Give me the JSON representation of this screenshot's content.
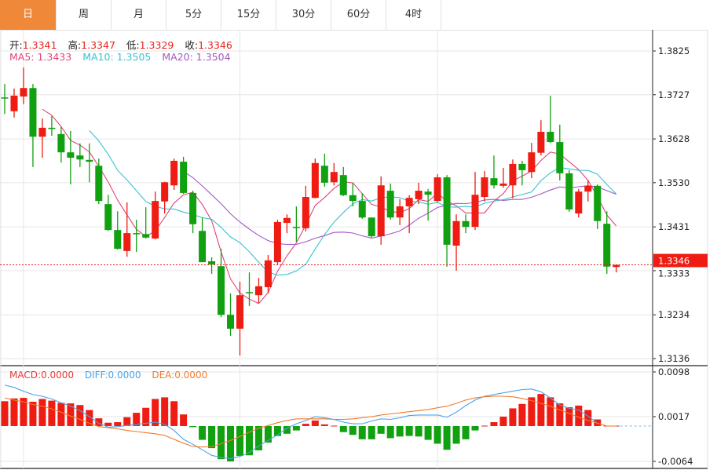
{
  "tabs": [
    {
      "label": "日",
      "active": true
    },
    {
      "label": "周"
    },
    {
      "label": "月"
    },
    {
      "label": "5分"
    },
    {
      "label": "15分"
    },
    {
      "label": "30分"
    },
    {
      "label": "60分"
    },
    {
      "label": "4时"
    }
  ],
  "ohlc_legend": {
    "open_label": "开:",
    "open": "1.3341",
    "high_label": "高:",
    "high": "1.3347",
    "low_label": "低:",
    "low": "1.3329",
    "close_label": "收:",
    "close": "1.3346"
  },
  "ma_legend": {
    "ma5": "MA5: 1.3433",
    "ma10": "MA10: 1.3505",
    "ma20": "MA20: 1.3504"
  },
  "macd_legend": {
    "macd": "MACD:0.0000",
    "diff": "DIFF:0.0000",
    "dea": "DEA:0.0000"
  },
  "colors": {
    "up": "#ee1c12",
    "down": "#10a010",
    "active_tab": "#f0883a",
    "ma5": "#e0457b",
    "ma10": "#37c3d0",
    "ma20": "#a456c4",
    "macd": "#e53935",
    "diff": "#4aa3e8",
    "dea": "#f07a2a"
  },
  "chart_data": [
    {
      "type": "candlestick",
      "title": "",
      "yaxis_ticks": [
        "1.3825",
        "1.3727",
        "1.3628",
        "1.3530",
        "1.3431",
        "1.3333",
        "1.3234",
        "1.3136"
      ],
      "ylim": [
        1.3136,
        1.3825
      ],
      "grid": true,
      "current_price": "1.3346",
      "ma_periods": [
        5,
        10,
        20
      ],
      "ohlc": [
        [
          1.3721,
          1.3751,
          1.3684,
          1.372
        ],
        [
          1.369,
          1.3741,
          1.3676,
          1.3725
        ],
        [
          1.3723,
          1.3788,
          1.3706,
          1.3742
        ],
        [
          1.3742,
          1.3751,
          1.3565,
          1.3633
        ],
        [
          1.3633,
          1.3674,
          1.3586,
          1.3653
        ],
        [
          1.3653,
          1.3679,
          1.3635,
          1.3652
        ],
        [
          1.3639,
          1.3655,
          1.3575,
          1.3598
        ],
        [
          1.3598,
          1.3646,
          1.3526,
          1.3586
        ],
        [
          1.3591,
          1.3618,
          1.3565,
          1.3582
        ],
        [
          1.3581,
          1.3618,
          1.3531,
          1.3577
        ],
        [
          1.3568,
          1.3584,
          1.3482,
          1.3489
        ],
        [
          1.3482,
          1.3503,
          1.3422,
          1.3424
        ],
        [
          1.3424,
          1.3466,
          1.338,
          1.3382
        ],
        [
          1.3377,
          1.3486,
          1.3364,
          1.3417
        ],
        [
          1.3417,
          1.3447,
          1.3375,
          1.3416
        ],
        [
          1.3415,
          1.3475,
          1.3405,
          1.3407
        ],
        [
          1.3405,
          1.351,
          1.3403,
          1.3489
        ],
        [
          1.3488,
          1.3532,
          1.3461,
          1.3531
        ],
        [
          1.3524,
          1.3584,
          1.3514,
          1.3579
        ],
        [
          1.3577,
          1.3588,
          1.3505,
          1.3507
        ],
        [
          1.3507,
          1.3512,
          1.3417,
          1.3437
        ],
        [
          1.3422,
          1.3452,
          1.3352,
          1.3352
        ],
        [
          1.3354,
          1.3363,
          1.3326,
          1.3347
        ],
        [
          1.3343,
          1.3382,
          1.3229,
          1.3234
        ],
        [
          1.3234,
          1.3282,
          1.3187,
          1.3203
        ],
        [
          1.3203,
          1.3308,
          1.3143,
          1.3278
        ],
        [
          1.3285,
          1.3329,
          1.3254,
          1.3284
        ],
        [
          1.3278,
          1.3317,
          1.3261,
          1.3298
        ],
        [
          1.3296,
          1.3368,
          1.3282,
          1.3356
        ],
        [
          1.3352,
          1.3447,
          1.3347,
          1.3442
        ],
        [
          1.344,
          1.3459,
          1.3417,
          1.3451
        ],
        [
          1.3431,
          1.3477,
          1.3398,
          1.343
        ],
        [
          1.3428,
          1.3523,
          1.3421,
          1.3498
        ],
        [
          1.3496,
          1.3584,
          1.3495,
          1.3574
        ],
        [
          1.3568,
          1.3595,
          1.3521,
          1.353
        ],
        [
          1.3531,
          1.3574,
          1.3524,
          1.3554
        ],
        [
          1.3547,
          1.3565,
          1.35,
          1.3502
        ],
        [
          1.3502,
          1.353,
          1.3477,
          1.3489
        ],
        [
          1.3489,
          1.3507,
          1.3449,
          1.3452
        ],
        [
          1.3452,
          1.3452,
          1.3407,
          1.341
        ],
        [
          1.341,
          1.3544,
          1.3391,
          1.3524
        ],
        [
          1.3512,
          1.3528,
          1.3447,
          1.3452
        ],
        [
          1.3452,
          1.3493,
          1.3435,
          1.3477
        ],
        [
          1.3477,
          1.3502,
          1.3417,
          1.3496
        ],
        [
          1.3493,
          1.353,
          1.3482,
          1.3512
        ],
        [
          1.351,
          1.3516,
          1.3445,
          1.3503
        ],
        [
          1.3489,
          1.3549,
          1.3486,
          1.3542
        ],
        [
          1.3542,
          1.3547,
          1.3342,
          1.3391
        ],
        [
          1.3389,
          1.3459,
          1.3333,
          1.3444
        ],
        [
          1.3444,
          1.3459,
          1.3417,
          1.3431
        ],
        [
          1.3431,
          1.3554,
          1.3424,
          1.3503
        ],
        [
          1.3498,
          1.3556,
          1.3488,
          1.3542
        ],
        [
          1.354,
          1.3591,
          1.3517,
          1.3524
        ],
        [
          1.3523,
          1.3563,
          1.3519,
          1.3528
        ],
        [
          1.3524,
          1.3582,
          1.3495,
          1.3572
        ],
        [
          1.3572,
          1.3579,
          1.3524,
          1.3558
        ],
        [
          1.3554,
          1.3619,
          1.354,
          1.3598
        ],
        [
          1.3597,
          1.367,
          1.3591,
          1.3644
        ],
        [
          1.3644,
          1.3725,
          1.3619,
          1.3621
        ],
        [
          1.3621,
          1.366,
          1.3535,
          1.3551
        ],
        [
          1.3551,
          1.3558,
          1.3465,
          1.347
        ],
        [
          1.3461,
          1.3516,
          1.3452,
          1.351
        ],
        [
          1.351,
          1.3535,
          1.3488,
          1.3523
        ],
        [
          1.3523,
          1.3526,
          1.3426,
          1.3444
        ],
        [
          1.3438,
          1.3466,
          1.3326,
          1.3342
        ],
        [
          1.3341,
          1.3347,
          1.3329,
          1.3346
        ]
      ]
    },
    {
      "type": "bar+line",
      "title": "",
      "yaxis_ticks": [
        "0.0098",
        "0.0017",
        "-0.0064"
      ],
      "ylim": [
        -0.0064,
        0.0098
      ],
      "macd": [
        0.0045,
        0.005,
        0.0051,
        0.0044,
        0.0049,
        0.0046,
        0.0042,
        0.0041,
        0.0038,
        0.0029,
        0.0014,
        0.0006,
        0.0007,
        0.0016,
        0.0024,
        0.0033,
        0.0049,
        0.0052,
        0.0045,
        0.0021,
        -0.0002,
        -0.0025,
        -0.004,
        -0.006,
        -0.0064,
        -0.0054,
        -0.0053,
        -0.0044,
        -0.003,
        -0.0018,
        -0.0014,
        -0.0008,
        0.0004,
        0.001,
        0.0003,
        0.0,
        -0.0011,
        -0.0016,
        -0.0024,
        -0.0024,
        -0.0014,
        -0.0022,
        -0.0019,
        -0.0018,
        -0.0019,
        -0.0025,
        -0.0032,
        -0.0043,
        -0.0032,
        -0.0024,
        -0.0008,
        0.0,
        0.0007,
        0.0017,
        0.0032,
        0.004,
        0.0052,
        0.0058,
        0.0052,
        0.0041,
        0.0034,
        0.0037,
        0.0029,
        0.0012,
        0,
        0
      ],
      "diff": [
        0.0074,
        0.007,
        0.0063,
        0.0057,
        0.0054,
        0.0049,
        0.0042,
        0.0036,
        0.0028,
        0.0017,
        0.0005,
        -0.0002,
        -0.0001,
        0.0001,
        0.0003,
        0.0005,
        0.0007,
        0.0003,
        -0.0008,
        -0.0024,
        -0.0033,
        -0.0043,
        -0.0053,
        -0.0057,
        -0.0059,
        -0.0055,
        -0.0048,
        -0.0036,
        -0.0026,
        -0.0016,
        -0.0004,
        0.0004,
        0.001,
        0.0017,
        0.0015,
        0.0012,
        0.0007,
        0.0004,
        0.0004,
        0.0009,
        0.0013,
        0.0012,
        0.0015,
        0.0019,
        0.002,
        0.002,
        0.002,
        0.0016,
        0.0025,
        0.0037,
        0.0047,
        0.0054,
        0.0057,
        0.006,
        0.0063,
        0.0066,
        0.0067,
        0.0062,
        0.0051,
        0.0038,
        0.0032,
        0.0029,
        0.0018,
        0.0005,
        0,
        0
      ],
      "dea": [
        0.0051,
        0.0047,
        0.0044,
        0.0039,
        0.0036,
        0.0031,
        0.0025,
        0.0018,
        0.0012,
        0.0005,
        -0.0001,
        -0.0003,
        -0.0005,
        -0.0008,
        -0.001,
        -0.0012,
        -0.0014,
        -0.0017,
        -0.0024,
        -0.0031,
        -0.0037,
        -0.0038,
        -0.0037,
        -0.0032,
        -0.0026,
        -0.0019,
        -0.0011,
        -0.0004,
        0.0001,
        0.0006,
        0.001,
        0.0013,
        0.0013,
        0.0013,
        0.0013,
        0.0012,
        0.0012,
        0.0013,
        0.0015,
        0.0017,
        0.002,
        0.0022,
        0.0024,
        0.0026,
        0.0028,
        0.003,
        0.0033,
        0.0036,
        0.0041,
        0.0047,
        0.0051,
        0.0053,
        0.0054,
        0.0054,
        0.0053,
        0.005,
        0.0046,
        0.0041,
        0.0036,
        0.0029,
        0.0023,
        0.0016,
        0.001,
        0.0005,
        0,
        0
      ]
    }
  ]
}
